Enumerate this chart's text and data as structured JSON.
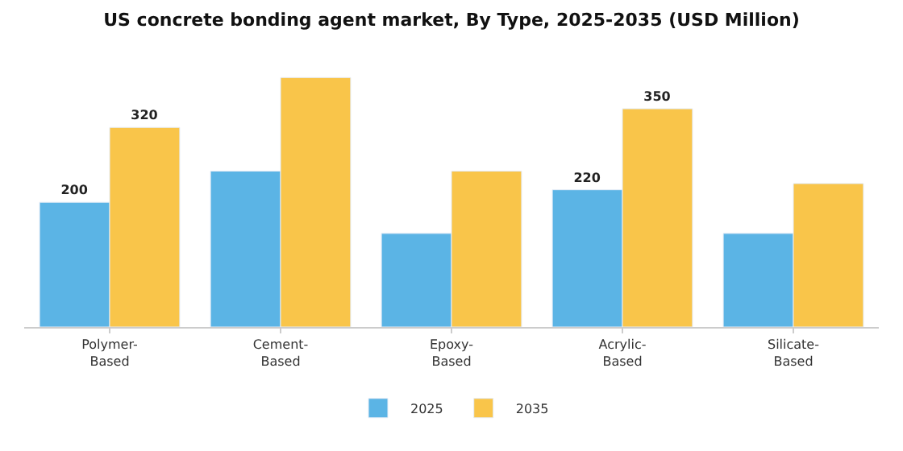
{
  "chart_data": {
    "type": "bar",
    "title": "US concrete bonding agent market, By Type, 2025-2035 (USD Million)",
    "categories": [
      "Polymer-\nBased",
      "Cement-\nBased",
      "Epoxy-\nBased",
      "Acrylic-\nBased",
      "Silicate-\nBased"
    ],
    "series": [
      {
        "name": "2025",
        "color": "#5bb4e5",
        "values": [
          200,
          250,
          150,
          220,
          150
        ],
        "value_labels": [
          "200",
          null,
          null,
          "220",
          null
        ]
      },
      {
        "name": "2035",
        "color": "#f9c54a",
        "values": [
          320,
          400,
          250,
          350,
          230
        ],
        "value_labels": [
          "320",
          null,
          null,
          "350",
          null
        ]
      }
    ],
    "legend": "bottom"
  }
}
